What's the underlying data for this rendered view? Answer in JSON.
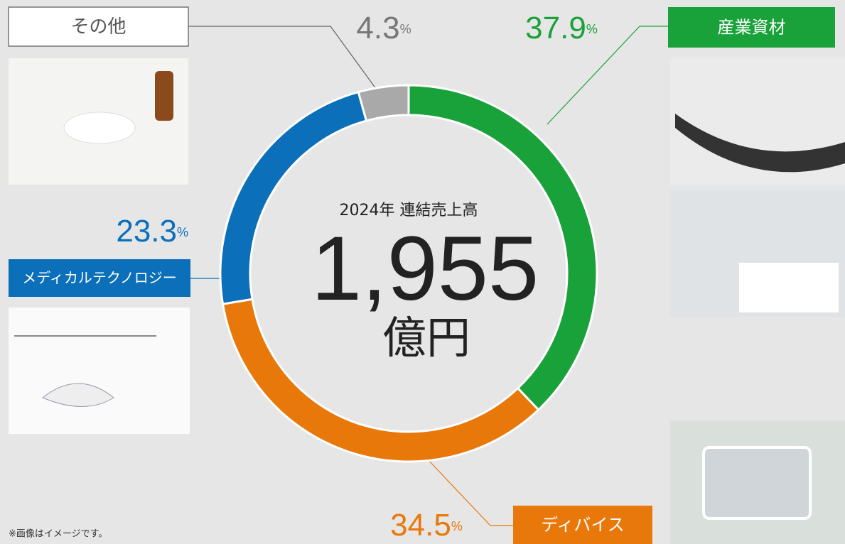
{
  "chart_data": {
    "type": "pie",
    "donut": true,
    "categories": [
      "産業資材",
      "ディバイス",
      "メディカルテクノロジー",
      "その他"
    ],
    "values": [
      37.9,
      34.5,
      23.3,
      4.3
    ],
    "unit": "%",
    "colors": [
      "#1aa23a",
      "#e9780a",
      "#0b6fba",
      "#a9a9a9"
    ],
    "center_title": "2024年 連結売上高",
    "total": "1,955",
    "total_unit": "億円"
  },
  "footnote": "※画像はイメージです。"
}
